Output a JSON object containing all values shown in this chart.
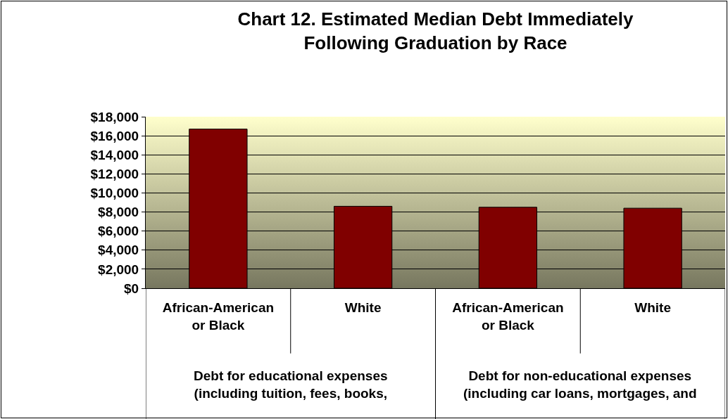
{
  "chart_data": {
    "type": "bar",
    "title": "Chart 12. Estimated Median Debt Immediately\nFollowing Graduation by Race",
    "categories": [
      "African-American\nor Black",
      "White",
      "African-American\nor Black",
      "White"
    ],
    "values": [
      16700,
      8600,
      8500,
      8400
    ],
    "color": "#800000",
    "ylim": [
      0,
      18000
    ],
    "yticks": [
      {
        "value": 0,
        "label": "$0"
      },
      {
        "value": 2000,
        "label": "$2,000"
      },
      {
        "value": 4000,
        "label": "$4,000"
      },
      {
        "value": 6000,
        "label": "$6,000"
      },
      {
        "value": 8000,
        "label": "$8,000"
      },
      {
        "value": 10000,
        "label": "$10,000"
      },
      {
        "value": 12000,
        "label": "$12,000"
      },
      {
        "value": 14000,
        "label": "$14,000"
      },
      {
        "value": 16000,
        "label": "$16,000"
      },
      {
        "value": 18000,
        "label": "$18,000"
      }
    ],
    "grid": "y",
    "annotations": [
      "Debt for educational expenses\n(including tuition, fees, books,",
      "Debt for non-educational expenses\n(including car loans, mortgages, and"
    ]
  }
}
